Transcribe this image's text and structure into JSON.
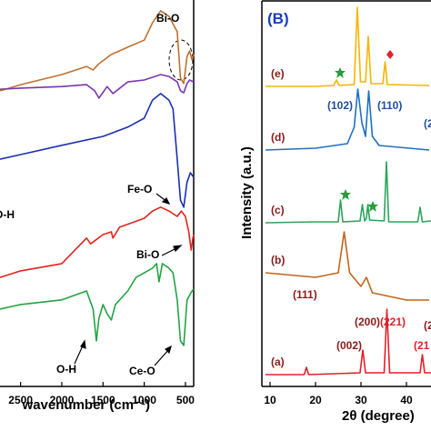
{
  "chart_data": [
    {
      "type": "line",
      "x_label": "wavenumber (cm⁻¹)",
      "xlim": [
        2750,
        400
      ],
      "ylim": [
        0,
        100
      ],
      "xticks": [
        2500,
        2000,
        1500,
        1000,
        500
      ],
      "series": [
        {
          "color": "#c0702e",
          "x": [
            2750,
            2500,
            2000,
            1700,
            1620,
            1550,
            1400,
            1200,
            1000,
            900,
            800,
            700,
            600,
            560,
            520,
            480,
            450,
            420,
            400
          ],
          "values": [
            76.5,
            78.1,
            80.7,
            82.8,
            81.9,
            83.5,
            85.9,
            87.8,
            89.6,
            94.1,
            97.2,
            95.8,
            91.8,
            79.8,
            78.4,
            85.4,
            86.8,
            84.5,
            85.9
          ]
        },
        {
          "color": "#7a35b0",
          "x": [
            2750,
            2500,
            2000,
            1700,
            1600,
            1550,
            1450,
            1380,
            1200,
            1000,
            900,
            800,
            700,
            600,
            560,
            520,
            480,
            450,
            400
          ],
          "values": [
            76.9,
            77.2,
            77.6,
            78.1,
            76.5,
            74.6,
            77.6,
            75.8,
            78.8,
            79.3,
            80,
            80.7,
            80.2,
            78.8,
            76.5,
            76,
            78.4,
            79.3,
            78.8
          ]
        },
        {
          "color": "#1a2fb5",
          "x": [
            2750,
            2500,
            2000,
            1500,
            1200,
            1000,
            900,
            800,
            700,
            650,
            600,
            560,
            520,
            480,
            440,
            400
          ],
          "values": [
            58.8,
            60,
            62.4,
            64.7,
            67.1,
            69.4,
            74.1,
            75.8,
            74.1,
            71.8,
            58.8,
            48.2,
            46.4,
            52.9,
            55.3,
            54.1
          ]
        },
        {
          "color": "#e3231c",
          "x": [
            2750,
            2500,
            2000,
            1700,
            1650,
            1500,
            1400,
            1380,
            1300,
            1000,
            900,
            800,
            700,
            600,
            550,
            500,
            460,
            430,
            410,
            400
          ],
          "values": [
            28.2,
            29.9,
            31.8,
            38.4,
            36.9,
            39.3,
            40,
            38.4,
            41.2,
            43.5,
            45.4,
            46.4,
            45.4,
            44,
            45.4,
            44,
            40,
            35.3,
            38.4,
            39.3
          ]
        },
        {
          "color": "#22a344",
          "x": [
            2750,
            2500,
            2000,
            1700,
            1620,
            1580,
            1550,
            1500,
            1450,
            1400,
            1350,
            1200,
            1100,
            1000,
            900,
            850,
            820,
            780,
            700,
            650,
            600,
            560,
            520,
            480,
            420,
            400
          ],
          "values": [
            20,
            21.2,
            22.4,
            24.7,
            20,
            11.8,
            17.6,
            21.2,
            18.8,
            17.2,
            21.2,
            24.7,
            28.2,
            29.4,
            30.6,
            31.8,
            27.1,
            31.8,
            30.6,
            29.4,
            22.4,
            11.8,
            10.6,
            22.4,
            24.7,
            25.2
          ]
        }
      ],
      "annotations": [
        "Bi-O",
        "Fe-O",
        "Bi-O",
        "O-H",
        "Ce-O",
        "O-H"
      ]
    },
    {
      "type": "line",
      "panel_label": "(B)",
      "x_label": "2θ (degree)",
      "y_label": "Intensity (a.u.)",
      "xlim": [
        8.2,
        45.4
      ],
      "ylim": [
        0,
        425
      ],
      "xticks": [
        10,
        20,
        30,
        40
      ],
      "series": [
        {
          "name": "(e)",
          "color": "#f7b500",
          "x": [
            9,
            20,
            24,
            24.6,
            25.2,
            28.5,
            29.2,
            29.9,
            31,
            31.6,
            32.2,
            34.8,
            35.3,
            35.8,
            45
          ],
          "values": [
            330,
            330,
            331,
            337,
            331,
            332,
            417,
            335,
            335,
            385,
            333,
            333,
            357,
            332,
            331
          ]
        },
        {
          "name": "(d)",
          "color": "#1f70c1",
          "x": [
            9,
            20,
            27,
            28.5,
            29.3,
            30.2,
            31,
            31.7,
            32.5,
            34,
            45
          ],
          "values": [
            260,
            262,
            267,
            285,
            327,
            290,
            275,
            325,
            275,
            265,
            260
          ]
        },
        {
          "name": "(c)",
          "color": "#2aa65a",
          "x": [
            9,
            20,
            25,
            25.5,
            26,
            29.8,
            30.3,
            30.8,
            31.2,
            31.5,
            31.9,
            35.1,
            35.6,
            36.1,
            42.5,
            43,
            43.5,
            45.4
          ],
          "values": [
            180,
            181,
            181,
            205,
            181,
            182,
            200,
            182,
            185,
            200,
            183,
            182,
            247,
            181,
            181,
            197,
            181,
            182
          ]
        },
        {
          "name": "(b)",
          "color": "#c0651a",
          "x": [
            9,
            20,
            25,
            26.3,
            27.5,
            30,
            31.2,
            32.5,
            40,
            45
          ],
          "values": [
            125,
            120,
            125,
            170,
            125,
            110,
            120,
            103,
            95,
            95
          ]
        },
        {
          "name": "(a)",
          "color": "#e3202a",
          "x": [
            9,
            17.5,
            18,
            18.5,
            29.8,
            30.4,
            31,
            35.1,
            35.7,
            36.3,
            43,
            43.5,
            44,
            45.4
          ],
          "values": [
            13,
            13,
            21,
            13,
            15,
            40,
            15,
            15,
            85,
            15,
            15,
            35,
            15,
            15
          ]
        }
      ],
      "annotations": [
        "(102)",
        "(110)",
        "(2",
        "(111)",
        "(200)",
        "(2",
        "(002)",
        "(221)",
        "(21"
      ]
    }
  ]
}
